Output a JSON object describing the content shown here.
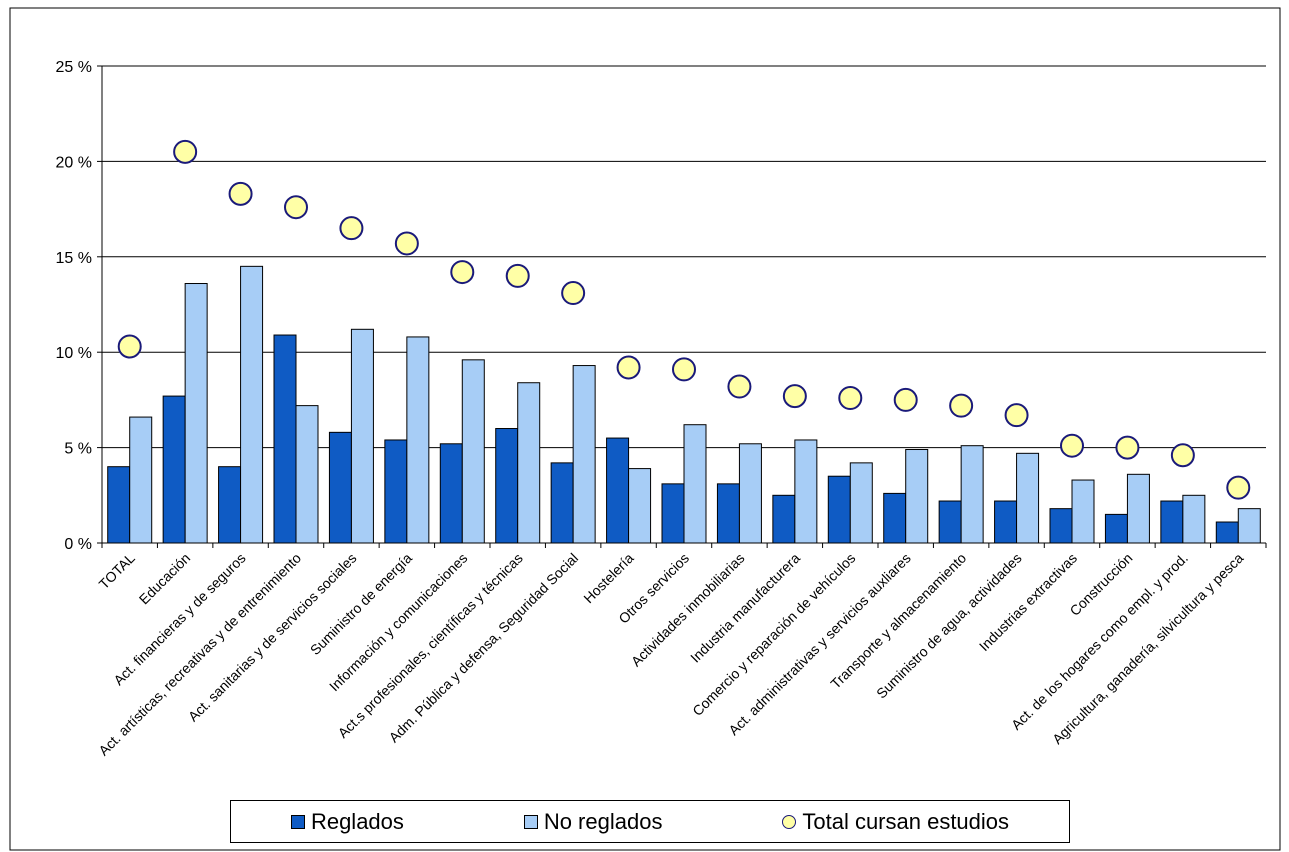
{
  "chart_data": {
    "type": "bar",
    "title": "",
    "xlabel": "",
    "ylabel": "",
    "ylim": [
      0,
      25
    ],
    "yticks": [
      0,
      5,
      10,
      15,
      20,
      25
    ],
    "ytick_labels": [
      "0 %",
      "5 %",
      "10 %",
      "15 %",
      "20 %",
      "25 %"
    ],
    "grid": true,
    "legend_position": "bottom",
    "categories": [
      "TOTAL",
      "Educación",
      "Act. financieras y de seguros",
      "Act. artísticas, recreativas y de entrenimiento",
      "Act. sanitarias y de servicios sociales",
      "Suministro de energía",
      "Información y comunicaciones",
      "Act.s profesionales, científicas y técnicas",
      "Adm. Pública y defensa, Seguridad Social",
      "Hostelería",
      "Otros servicios",
      "Actividades inmobiliarias",
      "Industria manufacturera",
      "Comercio y reparación de vehículos",
      "Act. administrativas y servicios auxliares",
      "Transporte y almacenamiento",
      "Suministro de agua, actividades",
      "Industrias extractivas",
      "Construcción",
      "Act. de los hogares como empl. y prod.",
      "Agricultura, ganadería, silvicultura y pesca"
    ],
    "series": [
      {
        "name": "Reglados",
        "kind": "bar",
        "color": "#0f5bc4",
        "values": [
          4.0,
          7.7,
          4.0,
          10.9,
          5.8,
          5.4,
          5.2,
          6.0,
          4.2,
          5.5,
          3.1,
          3.1,
          2.5,
          3.5,
          2.6,
          2.2,
          2.2,
          1.8,
          1.5,
          2.2,
          1.1
        ]
      },
      {
        "name": "No reglados",
        "kind": "bar",
        "color": "#a7cdf6",
        "values": [
          6.6,
          13.6,
          14.5,
          7.2,
          11.2,
          10.8,
          9.6,
          8.4,
          9.3,
          3.9,
          6.2,
          5.2,
          5.4,
          4.2,
          4.9,
          5.1,
          4.7,
          3.3,
          3.6,
          2.5,
          1.8
        ]
      },
      {
        "name": "Total cursan estudios",
        "kind": "marker",
        "color": "#ffffa6",
        "values": [
          10.3,
          20.5,
          18.3,
          17.6,
          16.5,
          15.7,
          14.2,
          14.0,
          13.1,
          9.2,
          9.1,
          8.2,
          7.7,
          7.6,
          7.5,
          7.2,
          6.7,
          5.1,
          5.0,
          4.6,
          2.9
        ]
      }
    ]
  },
  "legend": {
    "reglados": "Reglados",
    "no_reglados": "No reglados",
    "total": "Total cursan estudios"
  }
}
